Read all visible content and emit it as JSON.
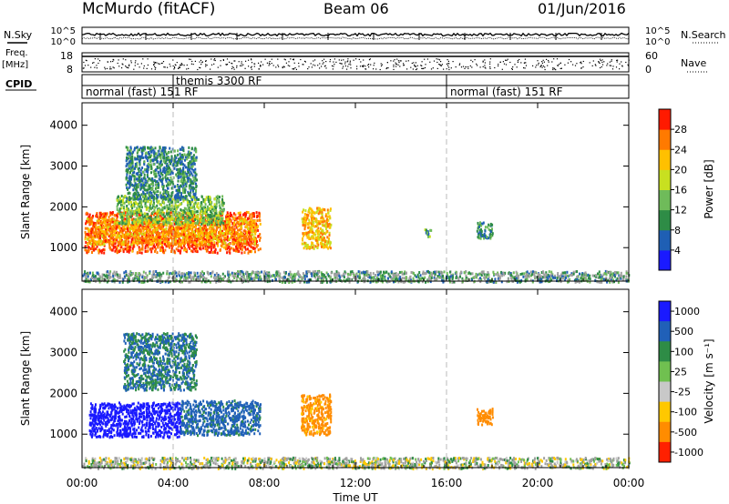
{
  "header": {
    "station": "McMurdo (fitACF)",
    "beam": "Beam 06",
    "date": "01/Jun/2016"
  },
  "strips": {
    "nsky_label": "N.Sky",
    "nsearch_label": "N.Search",
    "freq_label_top": "Freq.",
    "freq_label_unit": "[MHz]",
    "nave_label": "Nave",
    "cpid_label": "CPID",
    "noise_ticks": [
      "10^5",
      "10^0"
    ],
    "freq_ticks": [
      "18",
      "8"
    ],
    "nave_ticks": [
      "60",
      "0"
    ]
  },
  "cpid_segments": [
    {
      "label": "normal (fast) 151 RF",
      "start_hour": 0
    },
    {
      "label": "themis 3300 RF",
      "start_hour": 4
    },
    {
      "label": "normal (fast) 151 RF",
      "start_hour": 16
    }
  ],
  "x_axis": {
    "title": "Time UT",
    "tick_labels": [
      "00:00",
      "04:00",
      "08:00",
      "12:00",
      "16:00",
      "20:00",
      "00:00"
    ],
    "tick_hours": [
      0,
      4,
      8,
      12,
      16,
      20,
      24
    ],
    "range_hours": [
      0,
      24
    ]
  },
  "colors": {
    "power_scale": [
      "#1a1aff",
      "#1f5fb4",
      "#2e8c46",
      "#6fbb5a",
      "#c8e020",
      "#ffc000",
      "#ff7a00",
      "#ff1a00"
    ],
    "velocity_scale": [
      "#1a1aff",
      "#2060b8",
      "#2e8c46",
      "#70c050",
      "#c8c8c8",
      "#ffc800",
      "#ff8c00",
      "#ff2000"
    ],
    "ground_scatter": "#a0a0a0"
  },
  "chart_data": [
    {
      "type": "heatmap",
      "panel": "power",
      "x_unit": "hours UT",
      "y_unit": "km",
      "xlim": [
        0,
        24
      ],
      "ylim": [
        180,
        4550
      ],
      "ylabel": "Slant Range [km]",
      "ytick_labels": [
        "1000",
        "2000",
        "3000",
        "4000"
      ],
      "ytick_values": [
        1000,
        2000,
        3000,
        4000
      ],
      "colorbar": {
        "label": "Power [dB]",
        "range": [
          0,
          32
        ],
        "tick_labels": [
          "4",
          "8",
          "12",
          "16",
          "20",
          "24",
          "28"
        ],
        "tick_values": [
          4,
          8,
          12,
          16,
          20,
          24,
          28
        ]
      },
      "regions": [
        {
          "x": [
            0.1,
            7.8
          ],
          "y": [
            900,
            1900
          ],
          "value": 28
        },
        {
          "x": [
            0.2,
            7.6
          ],
          "y": [
            1100,
            1750
          ],
          "value": 24
        },
        {
          "x": [
            1.5,
            6.2
          ],
          "y": [
            1600,
            2300
          ],
          "value": 14
        },
        {
          "x": [
            1.9,
            5.0
          ],
          "y": [
            2200,
            3500
          ],
          "value": 9
        },
        {
          "x": [
            9.6,
            10.9
          ],
          "y": [
            1000,
            2000
          ],
          "value": 22
        },
        {
          "x": [
            15.0,
            15.3
          ],
          "y": [
            1300,
            1500
          ],
          "value": 12
        },
        {
          "x": [
            17.3,
            18.0
          ],
          "y": [
            1250,
            1650
          ],
          "value": 10
        },
        {
          "x": [
            0,
            24
          ],
          "y": [
            180,
            450
          ],
          "value": 10
        }
      ]
    },
    {
      "type": "heatmap",
      "panel": "velocity",
      "x_unit": "hours UT",
      "y_unit": "km",
      "xlim": [
        0,
        24
      ],
      "ylim": [
        180,
        4550
      ],
      "ylabel": "Slant Range [km]",
      "ytick_labels": [
        "1000",
        "2000",
        "3000",
        "4000"
      ],
      "ytick_values": [
        1000,
        2000,
        3000,
        4000
      ],
      "colorbar": {
        "label": "Velocity [m s⁻¹]",
        "tick_labels": [
          "1000",
          "500",
          "100",
          "25",
          "-25",
          "-100",
          "-500",
          "-1000"
        ],
        "tick_values": [
          1000,
          500,
          100,
          25,
          -25,
          -100,
          -500,
          -1000
        ]
      },
      "regions": [
        {
          "x": [
            0.3,
            4.3
          ],
          "y": [
            950,
            1800
          ],
          "value": 800
        },
        {
          "x": [
            4.3,
            7.8
          ],
          "y": [
            1000,
            1850
          ],
          "value": 150
        },
        {
          "x": [
            1.8,
            5.0
          ],
          "y": [
            2100,
            3500
          ],
          "value": 100
        },
        {
          "x": [
            9.6,
            10.9
          ],
          "y": [
            1000,
            2000
          ],
          "value": -150
        },
        {
          "x": [
            17.3,
            18.0
          ],
          "y": [
            1250,
            1650
          ],
          "value": -200
        },
        {
          "x": [
            0,
            24
          ],
          "y": [
            180,
            450
          ],
          "value": 0
        }
      ]
    }
  ]
}
